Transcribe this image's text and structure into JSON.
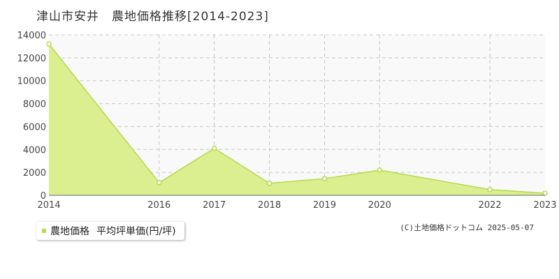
{
  "title": "津山市安井　農地価格推移[2014-2023]",
  "legend": {
    "series_label": "農地価格",
    "unit_label": "平均坪単価(円/坪)"
  },
  "copyright": "(C)土地価格ドットコム 2025-05-07",
  "colors": {
    "area_fill": "#dbee90",
    "line": "#b6d94c",
    "marker_fill": "#ffffff",
    "grid": "#c8c8c8",
    "plot_bg": "#f9f9f9"
  },
  "chart_data": {
    "type": "area",
    "x": [
      2014,
      2016,
      2017,
      2018,
      2019,
      2020,
      2022,
      2023
    ],
    "series": [
      {
        "name": "農地価格",
        "values": [
          13200,
          1100,
          4100,
          1050,
          1450,
          2200,
          500,
          180
        ]
      }
    ],
    "x_tick_labels": [
      "2014",
      "2016",
      "2017",
      "2018",
      "2019",
      "2020",
      "2022",
      "2023"
    ],
    "y_ticks": [
      0,
      2000,
      4000,
      6000,
      8000,
      10000,
      12000,
      14000
    ],
    "ylim": [
      0,
      14000
    ],
    "grid": true,
    "legend_position": "bottom-left"
  }
}
